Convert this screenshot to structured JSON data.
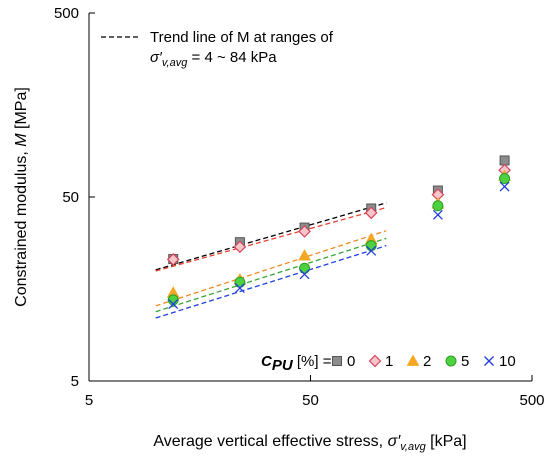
{
  "chart_data": {
    "type": "scatter",
    "x_scale": "log",
    "y_scale": "log",
    "xlim": [
      5,
      500
    ],
    "ylim": [
      5,
      500
    ],
    "xticks": [
      "5",
      "50",
      "500"
    ],
    "yticks": [
      "5",
      "50",
      "500"
    ],
    "xlabel_main": "Average vertical effective stress, ",
    "xlabel_sym": "σ′",
    "xlabel_sub": "v,avg",
    "xlabel_unit": " [kPa]",
    "ylabel_main": "Constrained modulus, ",
    "ylabel_sym": "M",
    "ylabel_unit": " [MPa]",
    "trend_note_line1": "Trend line of M at ranges of",
    "trend_note_sym": "σ′",
    "trend_note_sub": "v,avg",
    "trend_note_rest": " = 4 ~ 84 kPa",
    "legend_label_main": "C",
    "legend_label_sub": "PU",
    "legend_label_rest": " [%] =",
    "grid": false,
    "series": [
      {
        "name": "0",
        "marker": "square",
        "color": "#8c8c8c",
        "stroke": "#555555",
        "trend_color": "#000000",
        "x": [
          12,
          24,
          47,
          94,
          188,
          376
        ],
        "y": [
          23.0,
          28.4,
          34.1,
          43.3,
          54.2,
          79.0
        ],
        "trend": {
          "x": [
            10,
            110
          ],
          "y": [
            20.1,
            46.5
          ]
        }
      },
      {
        "name": "1",
        "marker": "diamond",
        "color": "#f4c6cc",
        "stroke": "#d6455a",
        "trend_color": "#e8412e",
        "x": [
          12,
          24,
          47,
          94,
          188,
          376
        ],
        "y": [
          22.9,
          26.8,
          32.5,
          41.0,
          51.5,
          70.0
        ],
        "trend": {
          "x": [
            10,
            110
          ],
          "y": [
            19.8,
            43.8
          ]
        }
      },
      {
        "name": "2",
        "marker": "triangle",
        "color": "#f5a623",
        "stroke": "#f5a623",
        "trend_color": "#f08a24",
        "x": [
          12,
          24,
          47,
          94,
          188,
          376
        ],
        "y": [
          15.1,
          17.8,
          24.0,
          29.5,
          46.0,
          65.0
        ],
        "trend": {
          "x": [
            10,
            110
          ],
          "y": [
            12.8,
            32.8
          ]
        }
      },
      {
        "name": "5",
        "marker": "circle",
        "color": "#4cd13f",
        "stroke": "#2f9e2a",
        "trend_color": "#3aa53a",
        "x": [
          12,
          24,
          47,
          94,
          188,
          376
        ],
        "y": [
          13.8,
          17.2,
          20.5,
          27.2,
          44.8,
          63.0
        ],
        "trend": {
          "x": [
            10,
            110
          ],
          "y": [
            11.9,
            29.8
          ]
        }
      },
      {
        "name": "10",
        "marker": "asterisk",
        "color": "#1f3fe0",
        "stroke": "#1f3fe0",
        "trend_color": "#1f3fe0",
        "x": [
          12,
          24,
          47,
          94,
          188,
          376
        ],
        "y": [
          13.1,
          16.0,
          19.0,
          25.5,
          40.0,
          57.0
        ],
        "trend": {
          "x": [
            10,
            110
          ],
          "y": [
            11.0,
            27.2
          ]
        }
      }
    ]
  }
}
